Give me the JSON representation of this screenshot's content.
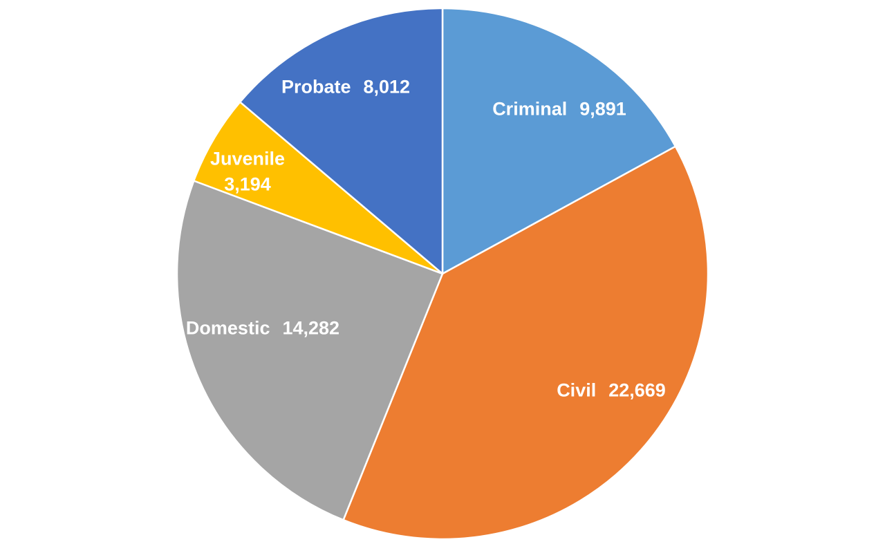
{
  "page": {
    "background_color": "#FFFFFF"
  },
  "chart_data": {
    "type": "pie",
    "title": "",
    "legend": "none",
    "start_angle_deg": -90,
    "direction": "clockwise",
    "label_color": "#FFFFFF",
    "separator_color": "#FFFFFF",
    "categories": [
      "Criminal",
      "Civil",
      "Domestic",
      "Juvenile",
      "Probate"
    ],
    "values": [
      9891,
      22669,
      14282,
      3194,
      8012
    ],
    "slices": [
      {
        "label": "Criminal",
        "value": 9891,
        "value_text": "9,891",
        "color": "#5B9BD5"
      },
      {
        "label": "Civil",
        "value": 22669,
        "value_text": "22,669",
        "color": "#ED7D31"
      },
      {
        "label": "Domestic",
        "value": 14282,
        "value_text": "14,282",
        "color": "#A5A5A5"
      },
      {
        "label": "Juvenile",
        "value": 3194,
        "value_text": "3,194",
        "color": "#FFC000"
      },
      {
        "label": "Probate",
        "value": 8012,
        "value_text": "8,012",
        "color": "#4472C4"
      }
    ]
  }
}
